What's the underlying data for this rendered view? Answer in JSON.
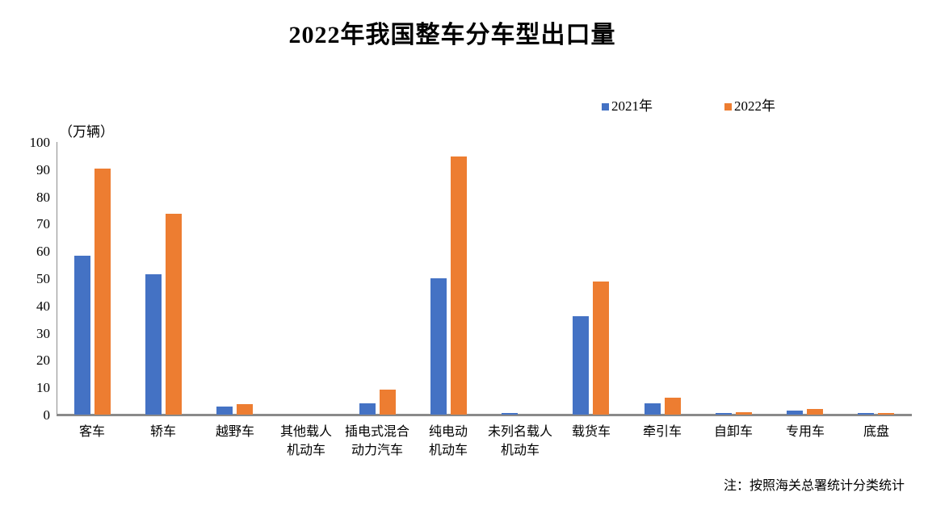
{
  "chart_data": {
    "type": "bar",
    "title": "2022年我国整车分车型出口量",
    "unit_label": "（万辆）",
    "note": "注：按照海关总署统计分类统计",
    "categories": [
      "客车",
      "轿车",
      "越野车",
      "其他载人机动车",
      "插电式混合动力汽车",
      "纯电动机动车",
      "未列名载人机动车",
      "载货车",
      "牵引车",
      "自卸车",
      "专用车",
      "底盘"
    ],
    "category_label_lines": [
      [
        "客车"
      ],
      [
        "轿车"
      ],
      [
        "越野车"
      ],
      [
        "其他载人",
        "机动车"
      ],
      [
        "插电式混合",
        "动力汽车"
      ],
      [
        "纯电动",
        "机动车"
      ],
      [
        "未列名载人",
        "机动车"
      ],
      [
        "载货车"
      ],
      [
        "牵引车"
      ],
      [
        "自卸车"
      ],
      [
        "专用车"
      ],
      [
        "底盘"
      ]
    ],
    "series": [
      {
        "name": "2021年",
        "color": "#4472C4",
        "values": [
          58.4,
          51.5,
          3.0,
          0,
          4.1,
          50.1,
          0.5,
          36.2,
          4.2,
          0.6,
          1.5,
          0.6
        ]
      },
      {
        "name": "2022年",
        "color": "#ED7D31",
        "values": [
          90.2,
          73.7,
          3.9,
          0,
          9.3,
          94.7,
          0,
          48.9,
          6.3,
          0.8,
          2.2,
          0.5
        ]
      }
    ],
    "ylim": [
      0,
      100
    ],
    "ytick_step": 10,
    "ytick_labels": [
      "0",
      "10",
      "20",
      "30",
      "40",
      "50",
      "60",
      "70",
      "80",
      "90",
      "100"
    ],
    "legend_position": "top",
    "grid": false,
    "background_color": "#ffffff",
    "axis_color": "#8a8a8a"
  }
}
